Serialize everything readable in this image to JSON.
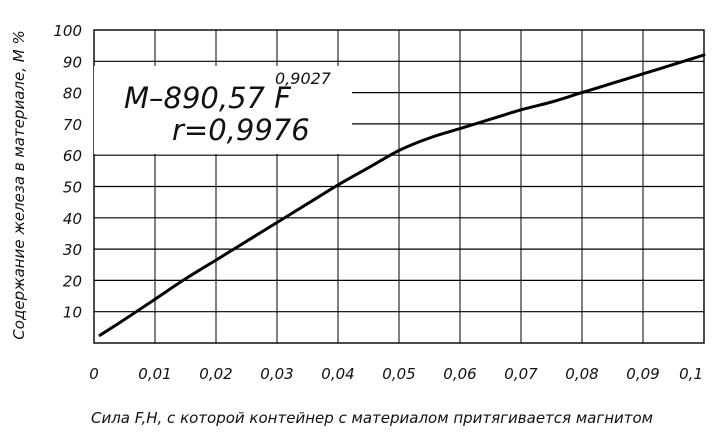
{
  "chart_data": {
    "type": "line",
    "title": "",
    "xlabel": "Сила F,Н, с которой контейнер с материалом притягивается магнитом",
    "ylabel": "Содержание железа в материале, М %",
    "xlim": [
      0,
      0.1
    ],
    "ylim": [
      0,
      100
    ],
    "x_ticks": [
      0,
      0.01,
      0.02,
      0.03,
      0.04,
      0.05,
      0.06,
      0.07,
      0.08,
      0.09,
      0.1
    ],
    "x_tick_labels": [
      "0",
      "0,01",
      "0,02",
      "0,03",
      "0,04",
      "0,05",
      "0,06",
      "0,07",
      "0,08",
      "0,09",
      "0,1"
    ],
    "y_ticks": [
      10,
      20,
      30,
      40,
      50,
      60,
      70,
      80,
      90,
      100
    ],
    "y_tick_labels": [
      "10",
      "20",
      "30",
      "40",
      "50",
      "60",
      "70",
      "80",
      "90",
      "100"
    ],
    "grid": true,
    "legend": "none",
    "series": [
      {
        "x": [
          0.001,
          0.005,
          0.01,
          0.015,
          0.02,
          0.025,
          0.03,
          0.035,
          0.04,
          0.045,
          0.05,
          0.055,
          0.06,
          0.065,
          0.07,
          0.075,
          0.08,
          0.085,
          0.09,
          0.095,
          0.1
        ],
        "y": [
          2.5,
          7.5,
          14,
          20.5,
          26.5,
          32.5,
          38.5,
          44.5,
          50.5,
          56,
          61.5,
          65.5,
          68.5,
          71.5,
          74.5,
          77,
          80,
          83,
          86,
          89,
          92
        ]
      }
    ],
    "annotations": {
      "equation_main": "М–890,57 F",
      "equation_exponent": "0,9027",
      "correlation": "r=0,9976"
    }
  }
}
